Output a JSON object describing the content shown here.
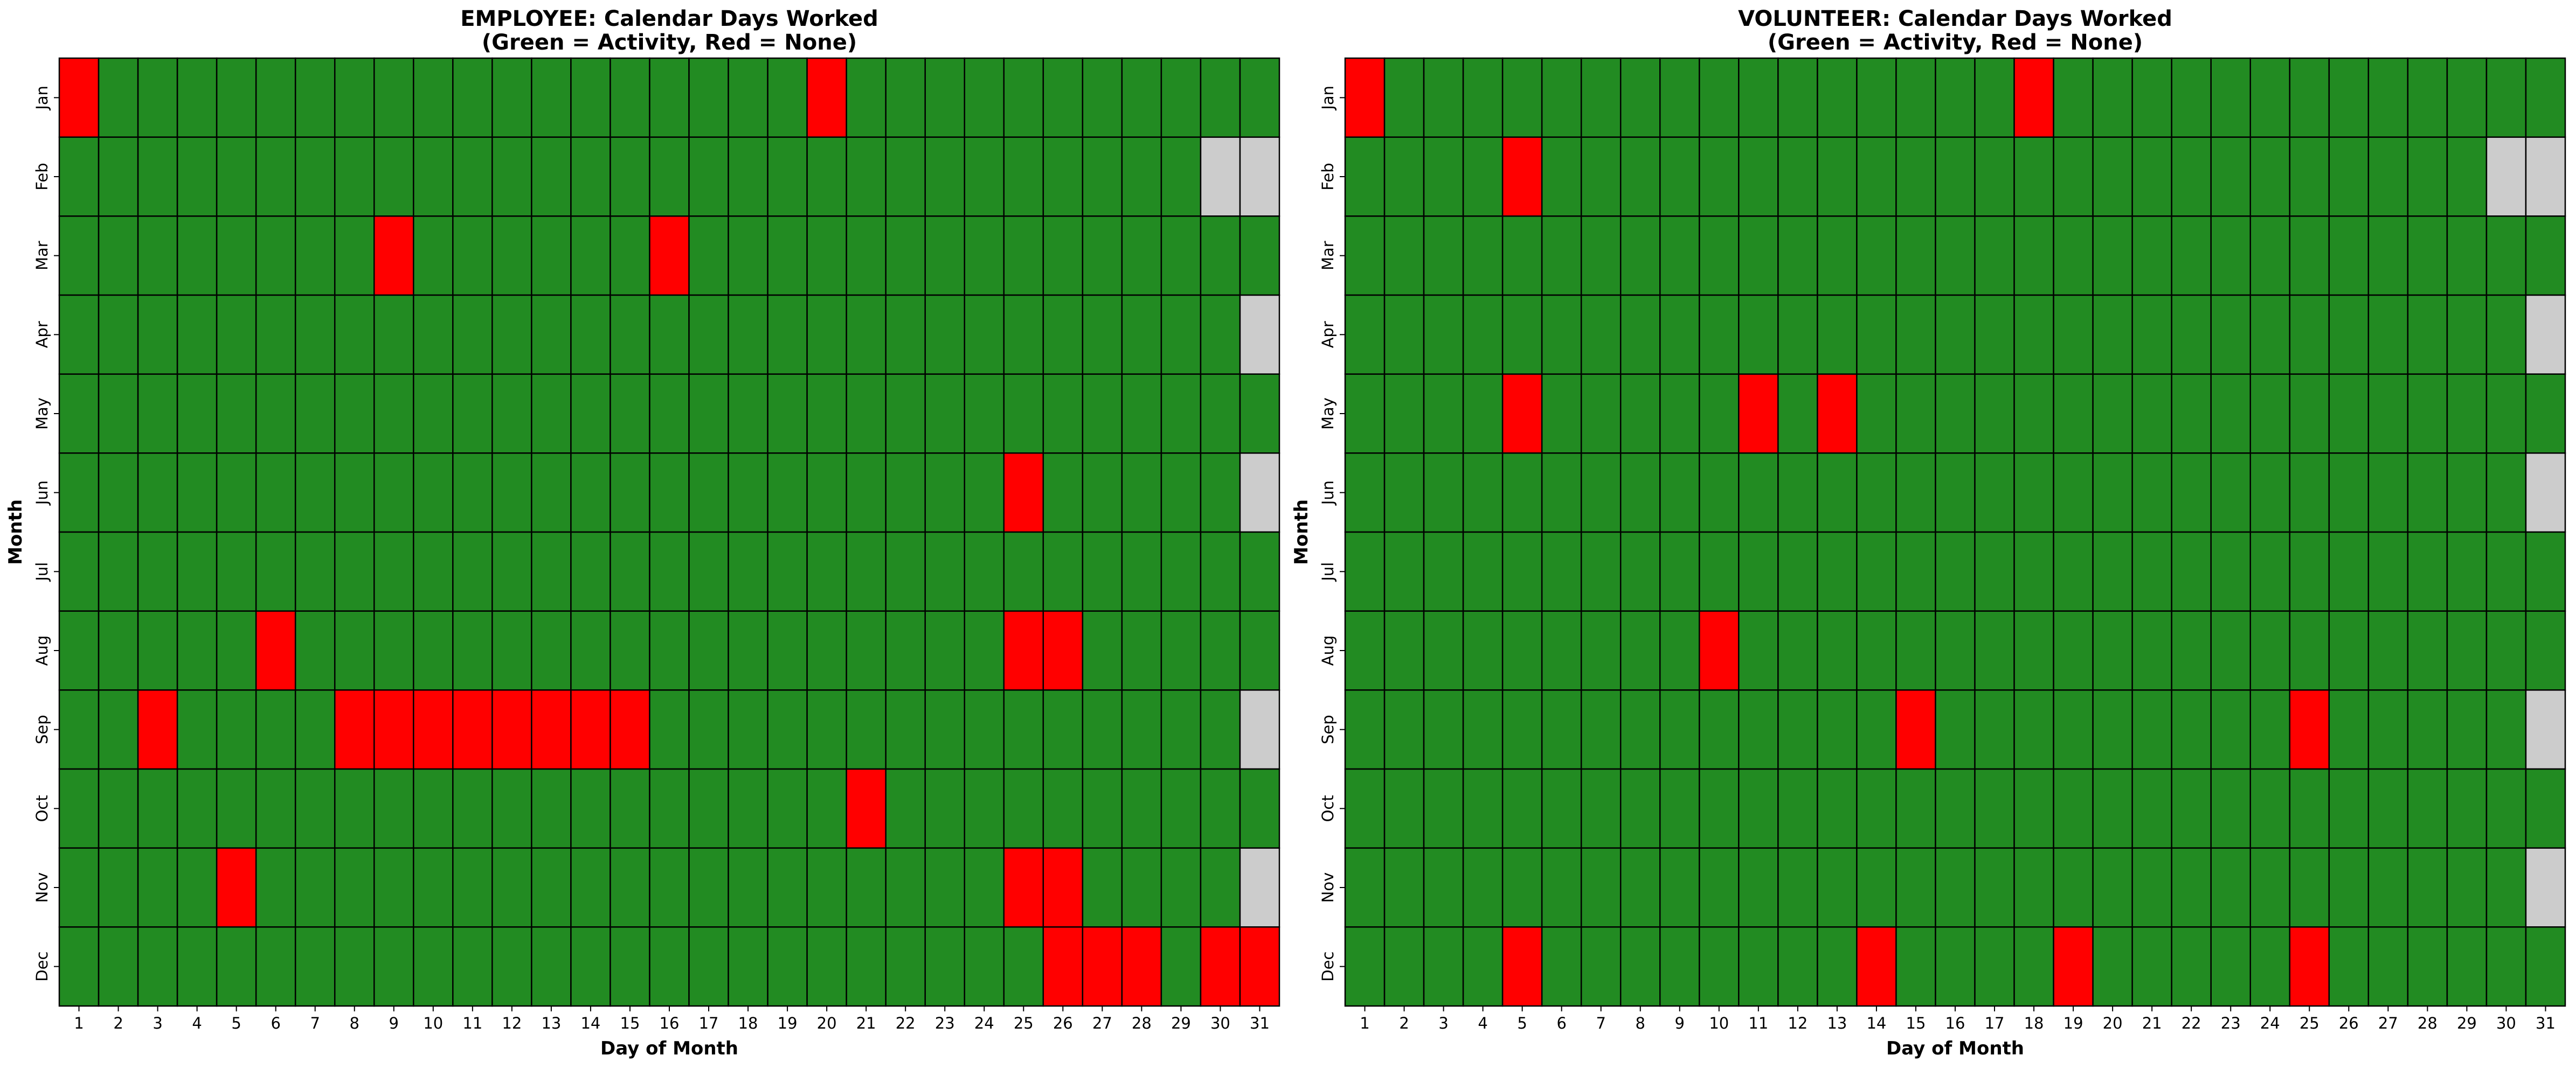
{
  "chart_data": [
    {
      "type": "heatmap",
      "title_line1": "EMPLOYEE: Calendar Days Worked",
      "title_line2": "(Green = Activity, Red = None)",
      "xlabel": "Day of Month",
      "ylabel": "Month",
      "x_categories": [
        "1",
        "2",
        "3",
        "4",
        "5",
        "6",
        "7",
        "8",
        "9",
        "10",
        "11",
        "12",
        "13",
        "14",
        "15",
        "16",
        "17",
        "18",
        "19",
        "20",
        "21",
        "22",
        "23",
        "24",
        "25",
        "26",
        "27",
        "28",
        "29",
        "30",
        "31"
      ],
      "y_categories": [
        "Jan",
        "Feb",
        "Mar",
        "Apr",
        "May",
        "Jun",
        "Jul",
        "Aug",
        "Sep",
        "Oct",
        "Nov",
        "Dec"
      ],
      "legend": {
        "activity": "#228b22",
        "none": "#ff0000",
        "invalid_date": "#cccccc"
      },
      "grid": true,
      "values": [
        [
          0,
          1,
          1,
          1,
          1,
          1,
          1,
          1,
          1,
          1,
          1,
          1,
          1,
          1,
          1,
          1,
          1,
          1,
          1,
          0,
          1,
          1,
          1,
          1,
          1,
          1,
          1,
          1,
          1,
          1,
          1
        ],
        [
          1,
          1,
          1,
          1,
          1,
          1,
          1,
          1,
          1,
          1,
          1,
          1,
          1,
          1,
          1,
          1,
          1,
          1,
          1,
          1,
          1,
          1,
          1,
          1,
          1,
          1,
          1,
          1,
          1,
          -1,
          -1
        ],
        [
          1,
          1,
          1,
          1,
          1,
          1,
          1,
          1,
          0,
          1,
          1,
          1,
          1,
          1,
          1,
          0,
          1,
          1,
          1,
          1,
          1,
          1,
          1,
          1,
          1,
          1,
          1,
          1,
          1,
          1,
          1
        ],
        [
          1,
          1,
          1,
          1,
          1,
          1,
          1,
          1,
          1,
          1,
          1,
          1,
          1,
          1,
          1,
          1,
          1,
          1,
          1,
          1,
          1,
          1,
          1,
          1,
          1,
          1,
          1,
          1,
          1,
          1,
          -1
        ],
        [
          1,
          1,
          1,
          1,
          1,
          1,
          1,
          1,
          1,
          1,
          1,
          1,
          1,
          1,
          1,
          1,
          1,
          1,
          1,
          1,
          1,
          1,
          1,
          1,
          1,
          1,
          1,
          1,
          1,
          1,
          1
        ],
        [
          1,
          1,
          1,
          1,
          1,
          1,
          1,
          1,
          1,
          1,
          1,
          1,
          1,
          1,
          1,
          1,
          1,
          1,
          1,
          1,
          1,
          1,
          1,
          1,
          0,
          1,
          1,
          1,
          1,
          1,
          -1
        ],
        [
          1,
          1,
          1,
          1,
          1,
          1,
          1,
          1,
          1,
          1,
          1,
          1,
          1,
          1,
          1,
          1,
          1,
          1,
          1,
          1,
          1,
          1,
          1,
          1,
          1,
          1,
          1,
          1,
          1,
          1,
          1
        ],
        [
          1,
          1,
          1,
          1,
          1,
          0,
          1,
          1,
          1,
          1,
          1,
          1,
          1,
          1,
          1,
          1,
          1,
          1,
          1,
          1,
          1,
          1,
          1,
          1,
          0,
          0,
          1,
          1,
          1,
          1,
          1
        ],
        [
          1,
          1,
          0,
          1,
          1,
          1,
          1,
          0,
          0,
          0,
          0,
          0,
          0,
          0,
          0,
          1,
          1,
          1,
          1,
          1,
          1,
          1,
          1,
          1,
          1,
          1,
          1,
          1,
          1,
          1,
          -1
        ],
        [
          1,
          1,
          1,
          1,
          1,
          1,
          1,
          1,
          1,
          1,
          1,
          1,
          1,
          1,
          1,
          1,
          1,
          1,
          1,
          1,
          0,
          1,
          1,
          1,
          1,
          1,
          1,
          1,
          1,
          1,
          1
        ],
        [
          1,
          1,
          1,
          1,
          0,
          1,
          1,
          1,
          1,
          1,
          1,
          1,
          1,
          1,
          1,
          1,
          1,
          1,
          1,
          1,
          1,
          1,
          1,
          1,
          0,
          0,
          1,
          1,
          1,
          1,
          -1
        ],
        [
          1,
          1,
          1,
          1,
          1,
          1,
          1,
          1,
          1,
          1,
          1,
          1,
          1,
          1,
          1,
          1,
          1,
          1,
          1,
          1,
          1,
          1,
          1,
          1,
          1,
          0,
          0,
          0,
          1,
          0,
          0
        ]
      ]
    },
    {
      "type": "heatmap",
      "title_line1": "VOLUNTEER: Calendar Days Worked",
      "title_line2": "(Green = Activity, Red = None)",
      "xlabel": "Day of Month",
      "ylabel": "Month",
      "x_categories": [
        "1",
        "2",
        "3",
        "4",
        "5",
        "6",
        "7",
        "8",
        "9",
        "10",
        "11",
        "12",
        "13",
        "14",
        "15",
        "16",
        "17",
        "18",
        "19",
        "20",
        "21",
        "22",
        "23",
        "24",
        "25",
        "26",
        "27",
        "28",
        "29",
        "30",
        "31"
      ],
      "y_categories": [
        "Jan",
        "Feb",
        "Mar",
        "Apr",
        "May",
        "Jun",
        "Jul",
        "Aug",
        "Sep",
        "Oct",
        "Nov",
        "Dec"
      ],
      "legend": {
        "activity": "#228b22",
        "none": "#ff0000",
        "invalid_date": "#cccccc"
      },
      "grid": true,
      "values": [
        [
          0,
          1,
          1,
          1,
          1,
          1,
          1,
          1,
          1,
          1,
          1,
          1,
          1,
          1,
          1,
          1,
          1,
          0,
          1,
          1,
          1,
          1,
          1,
          1,
          1,
          1,
          1,
          1,
          1,
          1,
          1
        ],
        [
          1,
          1,
          1,
          1,
          0,
          1,
          1,
          1,
          1,
          1,
          1,
          1,
          1,
          1,
          1,
          1,
          1,
          1,
          1,
          1,
          1,
          1,
          1,
          1,
          1,
          1,
          1,
          1,
          1,
          -1,
          -1
        ],
        [
          1,
          1,
          1,
          1,
          1,
          1,
          1,
          1,
          1,
          1,
          1,
          1,
          1,
          1,
          1,
          1,
          1,
          1,
          1,
          1,
          1,
          1,
          1,
          1,
          1,
          1,
          1,
          1,
          1,
          1,
          1
        ],
        [
          1,
          1,
          1,
          1,
          1,
          1,
          1,
          1,
          1,
          1,
          1,
          1,
          1,
          1,
          1,
          1,
          1,
          1,
          1,
          1,
          1,
          1,
          1,
          1,
          1,
          1,
          1,
          1,
          1,
          1,
          -1
        ],
        [
          1,
          1,
          1,
          1,
          0,
          1,
          1,
          1,
          1,
          1,
          0,
          1,
          0,
          1,
          1,
          1,
          1,
          1,
          1,
          1,
          1,
          1,
          1,
          1,
          1,
          1,
          1,
          1,
          1,
          1,
          1
        ],
        [
          1,
          1,
          1,
          1,
          1,
          1,
          1,
          1,
          1,
          1,
          1,
          1,
          1,
          1,
          1,
          1,
          1,
          1,
          1,
          1,
          1,
          1,
          1,
          1,
          1,
          1,
          1,
          1,
          1,
          1,
          -1
        ],
        [
          1,
          1,
          1,
          1,
          1,
          1,
          1,
          1,
          1,
          1,
          1,
          1,
          1,
          1,
          1,
          1,
          1,
          1,
          1,
          1,
          1,
          1,
          1,
          1,
          1,
          1,
          1,
          1,
          1,
          1,
          1
        ],
        [
          1,
          1,
          1,
          1,
          1,
          1,
          1,
          1,
          1,
          0,
          1,
          1,
          1,
          1,
          1,
          1,
          1,
          1,
          1,
          1,
          1,
          1,
          1,
          1,
          1,
          1,
          1,
          1,
          1,
          1,
          1
        ],
        [
          1,
          1,
          1,
          1,
          1,
          1,
          1,
          1,
          1,
          1,
          1,
          1,
          1,
          1,
          0,
          1,
          1,
          1,
          1,
          1,
          1,
          1,
          1,
          1,
          0,
          1,
          1,
          1,
          1,
          1,
          -1
        ],
        [
          1,
          1,
          1,
          1,
          1,
          1,
          1,
          1,
          1,
          1,
          1,
          1,
          1,
          1,
          1,
          1,
          1,
          1,
          1,
          1,
          1,
          1,
          1,
          1,
          1,
          1,
          1,
          1,
          1,
          1,
          1
        ],
        [
          1,
          1,
          1,
          1,
          1,
          1,
          1,
          1,
          1,
          1,
          1,
          1,
          1,
          1,
          1,
          1,
          1,
          1,
          1,
          1,
          1,
          1,
          1,
          1,
          1,
          1,
          1,
          1,
          1,
          1,
          -1
        ],
        [
          1,
          1,
          1,
          1,
          0,
          1,
          1,
          1,
          1,
          1,
          1,
          1,
          1,
          0,
          1,
          1,
          1,
          1,
          0,
          1,
          1,
          1,
          1,
          1,
          0,
          1,
          1,
          1,
          1,
          1,
          1
        ]
      ]
    }
  ]
}
